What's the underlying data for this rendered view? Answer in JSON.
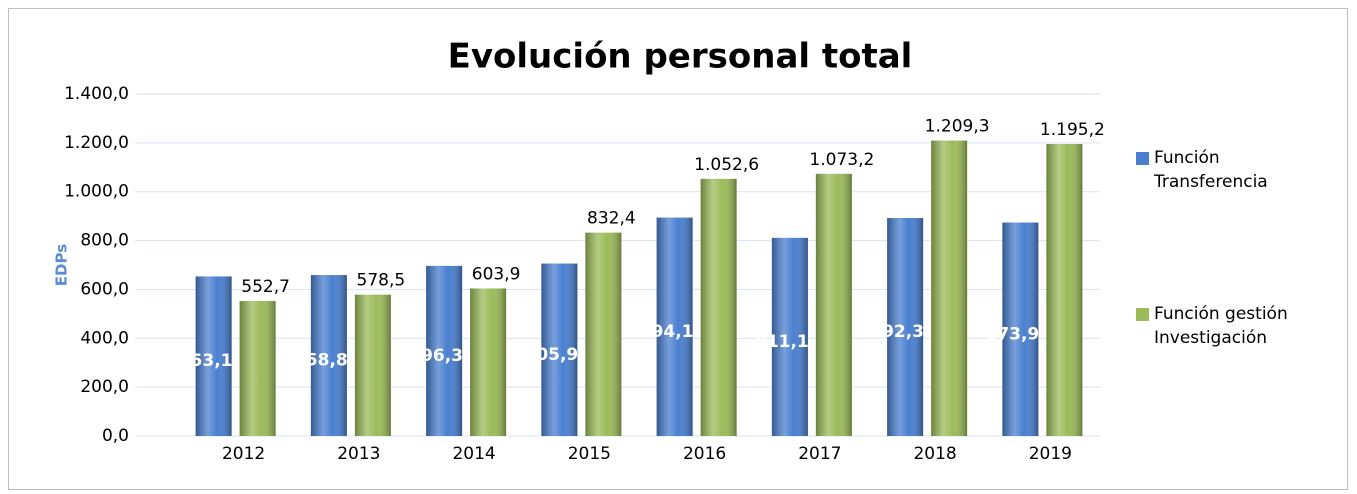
{
  "chart_data": {
    "type": "bar",
    "title": "Evolución personal total",
    "y_label": "EDPs",
    "categories": [
      "2012",
      "2013",
      "2014",
      "2015",
      "2016",
      "2017",
      "2018",
      "2019"
    ],
    "series": [
      {
        "name": "Función Transferencia",
        "color": "#4a7fd0",
        "values": [
          653.1,
          658.8,
          696.3,
          705.9,
          894.1,
          811.1,
          892.3,
          873.9
        ],
        "value_labels": [
          "653,1",
          "658,8",
          "696,3",
          "705,9",
          "894,1",
          "811,1",
          "892,3",
          "873,9"
        ]
      },
      {
        "name": "Función gestión Investigación",
        "color": "#9bbb59",
        "values": [
          552.7,
          578.5,
          603.9,
          832.4,
          1052.6,
          1073.2,
          1209.3,
          1195.2
        ],
        "value_labels": [
          "552,7",
          "578,5",
          "603,9",
          "832,4",
          "1.052,6",
          "1.073,2",
          "1.209,3",
          "1.195,2"
        ]
      }
    ],
    "ylim": [
      0,
      1400
    ],
    "yticks": [
      {
        "value": 0,
        "label": "0,0"
      },
      {
        "value": 200,
        "label": "200,0"
      },
      {
        "value": 400,
        "label": "400,0"
      },
      {
        "value": 600,
        "label": "600,0"
      },
      {
        "value": 800,
        "label": "800,0"
      },
      {
        "value": 1000,
        "label": "1.000,0"
      },
      {
        "value": 1200,
        "label": "1.200,0"
      },
      {
        "value": 1400,
        "label": "1.400,0"
      }
    ],
    "grid": true,
    "legend": "right"
  }
}
